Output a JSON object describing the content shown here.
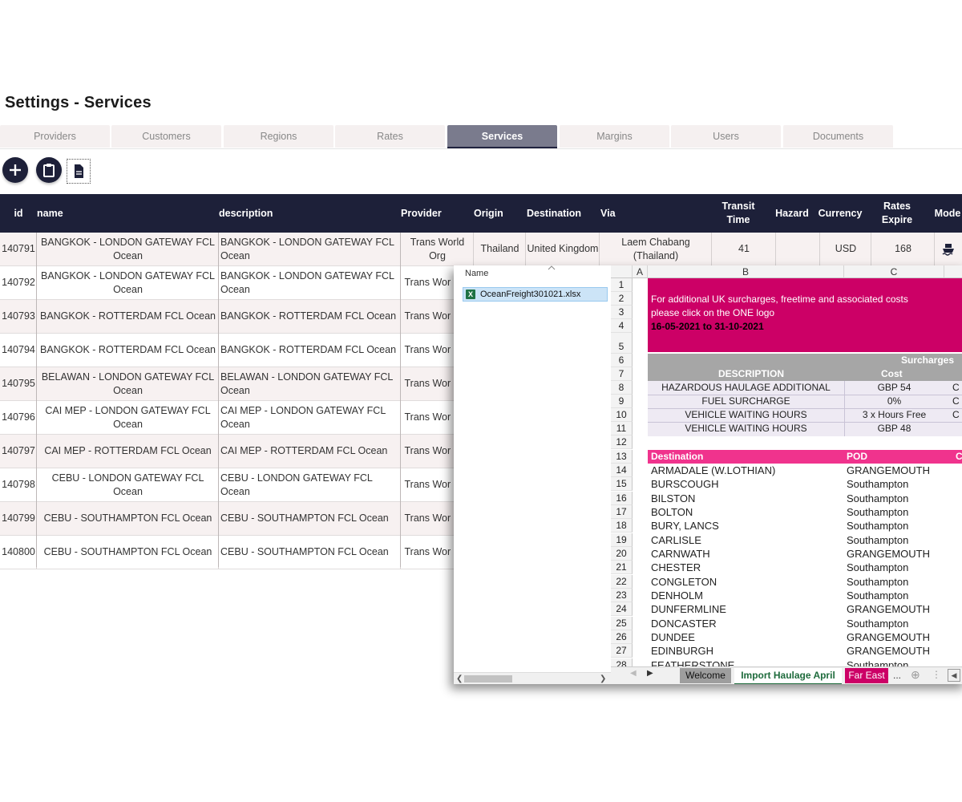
{
  "page": {
    "title": "Settings - Services"
  },
  "tabs": [
    {
      "label": "Providers",
      "active": false
    },
    {
      "label": "Customers",
      "active": false
    },
    {
      "label": "Regions",
      "active": false
    },
    {
      "label": "Rates",
      "active": false
    },
    {
      "label": "Services",
      "active": true
    },
    {
      "label": "Margins",
      "active": false
    },
    {
      "label": "Users",
      "active": false
    },
    {
      "label": "Documents",
      "active": false
    }
  ],
  "toolbar": {
    "add_icon": "plus-icon",
    "clipboard_icon": "clipboard-icon",
    "document_icon": "document-icon"
  },
  "grid": {
    "columns": [
      {
        "label": "id"
      },
      {
        "label": "name"
      },
      {
        "label": "description"
      },
      {
        "label": "Provider"
      },
      {
        "label": "Origin"
      },
      {
        "label": "Destination"
      },
      {
        "label": "Via"
      },
      {
        "label": "Transit Time"
      },
      {
        "label": "Hazard"
      },
      {
        "label": "Currency"
      },
      {
        "label": "Rates Expire"
      },
      {
        "label": "Mode"
      }
    ],
    "rows": [
      {
        "id": "140791",
        "name": "BANGKOK - LONDON GATEWAY FCL Ocean",
        "description": "BANGKOK - LONDON GATEWAY FCL Ocean",
        "provider": "Trans World Org",
        "origin": "Thailand",
        "destination": "United Kingdom",
        "via": "Laem Chabang (Thailand)",
        "transit": "41",
        "hazard": "",
        "currency": "USD",
        "expire": "168",
        "mode_icon": "ship-icon"
      },
      {
        "id": "140792",
        "name": "BANGKOK - LONDON GATEWAY FCL Ocean",
        "description": "BANGKOK - LONDON GATEWAY FCL Ocean",
        "provider": "Trans Wor Org"
      },
      {
        "id": "140793",
        "name": "BANGKOK - ROTTERDAM FCL Ocean",
        "description": "BANGKOK - ROTTERDAM FCL Ocean",
        "provider": "Trans Wor Org"
      },
      {
        "id": "140794",
        "name": "BANGKOK - ROTTERDAM FCL Ocean",
        "description": "BANGKOK - ROTTERDAM FCL Ocean",
        "provider": "Trans Wor Org"
      },
      {
        "id": "140795",
        "name": "BELAWAN - LONDON GATEWAY FCL Ocean",
        "description": "BELAWAN - LONDON GATEWAY FCL Ocean",
        "provider": "Trans Wor Org"
      },
      {
        "id": "140796",
        "name": "CAI MEP - LONDON GATEWAY FCL Ocean",
        "description": "CAI MEP - LONDON GATEWAY FCL Ocean",
        "provider": "Trans Wor Org"
      },
      {
        "id": "140797",
        "name": "CAI MEP - ROTTERDAM FCL Ocean",
        "description": "CAI MEP - ROTTERDAM FCL Ocean",
        "provider": "Trans Wor Org"
      },
      {
        "id": "140798",
        "name": "CEBU - LONDON GATEWAY FCL Ocean",
        "description": "CEBU - LONDON GATEWAY FCL Ocean",
        "provider": "Trans Wor Org"
      },
      {
        "id": "140799",
        "name": "CEBU - SOUTHAMPTON FCL Ocean",
        "description": "CEBU - SOUTHAMPTON FCL Ocean",
        "provider": "Trans Wor Org"
      },
      {
        "id": "140800",
        "name": "CEBU - SOUTHAMPTON FCL Ocean",
        "description": "CEBU - SOUTHAMPTON FCL Ocean",
        "provider": "Trans Wor Org"
      }
    ]
  },
  "explorer": {
    "column_label": "Name",
    "file_name": "OceanFreight301021.xlsx",
    "file_icon": "excel-file-icon"
  },
  "spreadsheet": {
    "col_headers": [
      "A",
      "B",
      "C"
    ],
    "row_numbers": [
      "1",
      "2",
      "3",
      "4",
      "5",
      "6",
      "7",
      "8",
      "9",
      "10",
      "11",
      "12",
      "13",
      "14",
      "15",
      "16",
      "17",
      "18",
      "19",
      "20",
      "21",
      "22",
      "23",
      "24",
      "25",
      "26",
      "27",
      "28"
    ],
    "banner": {
      "line1": "For additional UK surcharges, freetime and associated costs",
      "line2": "please click on the ONE logo",
      "dates": "16-05-2021 to 31-10-2021",
      "color": "#cc0066"
    },
    "surcharges": {
      "title": "Surcharges",
      "desc_header": "DESCRIPTION",
      "cost_header": "Cost",
      "rows": [
        {
          "desc": "HAZARDOUS HAULAGE ADDITIONAL",
          "cost": "GBP 54",
          "extra": "C"
        },
        {
          "desc": "FUEL SURCHARGE",
          "cost": "0%",
          "extra": "C"
        },
        {
          "desc": "VEHICLE WAITING HOURS",
          "cost": "3 x Hours Free",
          "extra": "C"
        },
        {
          "desc": "VEHICLE WAITING HOURS",
          "cost": "GBP 48",
          "extra": ""
        }
      ]
    },
    "dest_header": {
      "destination": "Destination",
      "pod": "POD",
      "extra": "C",
      "color": "#f0338d"
    },
    "destinations": [
      {
        "destination": "ARMADALE (W.LOTHIAN)",
        "pod": "GRANGEMOUTH"
      },
      {
        "destination": "BURSCOUGH",
        "pod": "Southampton"
      },
      {
        "destination": "BILSTON",
        "pod": "Southampton"
      },
      {
        "destination": "BOLTON",
        "pod": "Southampton"
      },
      {
        "destination": "BURY, LANCS",
        "pod": "Southampton"
      },
      {
        "destination": "CARLISLE",
        "pod": "Southampton"
      },
      {
        "destination": "CARNWATH",
        "pod": "GRANGEMOUTH"
      },
      {
        "destination": "CHESTER",
        "pod": "Southampton"
      },
      {
        "destination": "CONGLETON",
        "pod": "Southampton"
      },
      {
        "destination": "DENHOLM",
        "pod": "Southampton"
      },
      {
        "destination": "DUNFERMLINE",
        "pod": "GRANGEMOUTH"
      },
      {
        "destination": "DONCASTER",
        "pod": "Southampton"
      },
      {
        "destination": "DUNDEE",
        "pod": "GRANGEMOUTH"
      },
      {
        "destination": "EDINBURGH",
        "pod": "GRANGEMOUTH"
      },
      {
        "destination": "FEATHERSTONE",
        "pod": "Southampton"
      }
    ],
    "sheet_tabs": [
      {
        "label": "Welcome"
      },
      {
        "label": "Import Haulage April"
      },
      {
        "label": "Far East"
      },
      {
        "label": "..."
      }
    ]
  }
}
